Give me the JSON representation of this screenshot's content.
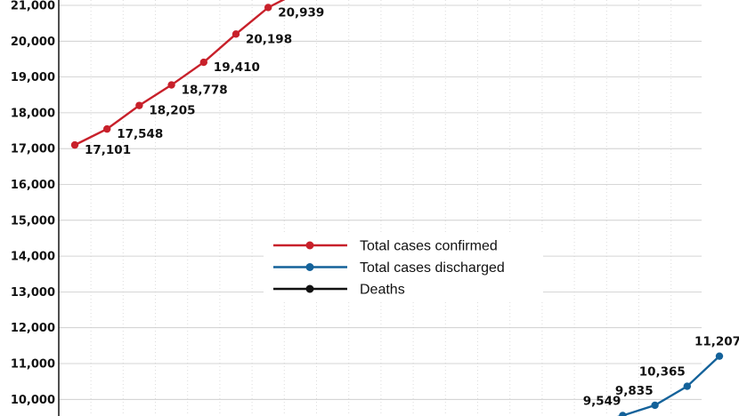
{
  "chart_data": {
    "type": "line",
    "title": "",
    "xlabel": "",
    "ylabel": "",
    "ylim": [
      10000,
      21000
    ],
    "y_ticks": [
      "21,000",
      "20,000",
      "19,000",
      "18,000",
      "17,000",
      "16,000",
      "15,000",
      "14,000",
      "13,000",
      "12,000",
      "11,000",
      "10,000"
    ],
    "y_tick_values": [
      21000,
      20000,
      19000,
      18000,
      17000,
      16000,
      15000,
      14000,
      13000,
      12000,
      11000,
      10000
    ],
    "grid": true,
    "legend_position": "center",
    "series": [
      {
        "name": "Total cases confirmed",
        "color": "#c8202a",
        "x": [
          0,
          1,
          2,
          3,
          4,
          5,
          6,
          7
        ],
        "values": [
          17101,
          17548,
          18205,
          18778,
          19410,
          20198,
          20939,
          21400
        ],
        "labels": [
          "17,101",
          "17,548",
          "18,205",
          "18,778",
          "19,410",
          "20,198",
          "20,939",
          ""
        ]
      },
      {
        "name": "Total cases discharged",
        "color": "#14629a",
        "x": [
          16,
          17,
          18,
          19,
          20
        ],
        "values": [
          9300,
          9549,
          9835,
          10365,
          11207
        ],
        "labels": [
          "",
          "9,549",
          "9,835",
          "10,365",
          "11,207"
        ]
      },
      {
        "name": "Deaths",
        "color": "#111111",
        "x": [],
        "values": [],
        "labels": []
      }
    ]
  }
}
